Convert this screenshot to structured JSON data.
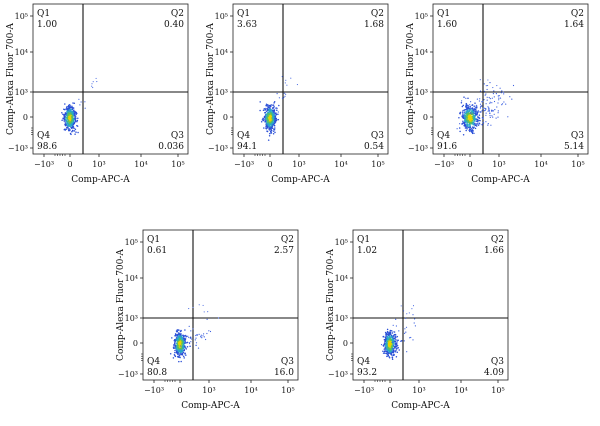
{
  "chart_data": [
    {
      "type": "scatter",
      "xlabel": "Comp-APC-A",
      "ylabel": "Comp-Alexa Fluor 700-A",
      "xticks": [
        "−10³",
        "0",
        "10³",
        "10⁴",
        "10⁵"
      ],
      "yticks": [
        "10⁵",
        "10⁴",
        "10³",
        "0",
        "−10³"
      ],
      "quadrants": [
        {
          "name": "Q1",
          "value": "1.00"
        },
        {
          "name": "Q2",
          "value": "0.40"
        },
        {
          "name": "Q3",
          "value": "0.036"
        },
        {
          "name": "Q4",
          "value": "98.6"
        }
      ]
    },
    {
      "type": "scatter",
      "xlabel": "Comp-APC-A",
      "ylabel": "Comp-Alexa Fluor 700-A",
      "xticks": [
        "−10³",
        "0",
        "10³",
        "10⁴",
        "10⁵"
      ],
      "yticks": [
        "10⁵",
        "10⁴",
        "10³",
        "0",
        "−10³"
      ],
      "quadrants": [
        {
          "name": "Q1",
          "value": "3.63"
        },
        {
          "name": "Q2",
          "value": "1.68"
        },
        {
          "name": "Q3",
          "value": "0.54"
        },
        {
          "name": "Q4",
          "value": "94.1"
        }
      ]
    },
    {
      "type": "scatter",
      "xlabel": "Comp-APC-A",
      "ylabel": "Comp-Alexa Fluor 700-A",
      "xticks": [
        "−10³",
        "0",
        "10³",
        "10⁴",
        "10⁵"
      ],
      "yticks": [
        "10⁵",
        "10⁴",
        "10³",
        "0",
        "−10³"
      ],
      "quadrants": [
        {
          "name": "Q1",
          "value": "1.60"
        },
        {
          "name": "Q2",
          "value": "1.64"
        },
        {
          "name": "Q3",
          "value": "5.14"
        },
        {
          "name": "Q4",
          "value": "91.6"
        }
      ]
    },
    {
      "type": "scatter",
      "xlabel": "Comp-APC-A",
      "ylabel": "Comp-Alexa Fluor 700-A",
      "xticks": [
        "−10³",
        "0",
        "10³",
        "10⁴",
        "10⁵"
      ],
      "yticks": [
        "10⁵",
        "10⁴",
        "10³",
        "0",
        "−10³"
      ],
      "quadrants": [
        {
          "name": "Q1",
          "value": "0.61"
        },
        {
          "name": "Q2",
          "value": "2.57"
        },
        {
          "name": "Q3",
          "value": "16.0"
        },
        {
          "name": "Q4",
          "value": "80.8"
        }
      ]
    },
    {
      "type": "scatter",
      "xlabel": "Comp-APC-A",
      "ylabel": "Comp-Alexa Fluor 700-A",
      "xticks": [
        "−10³",
        "0",
        "10³",
        "10⁴",
        "10⁵"
      ],
      "yticks": [
        "10⁵",
        "10⁴",
        "10³",
        "0",
        "−10³"
      ],
      "quadrants": [
        {
          "name": "Q1",
          "value": "1.02"
        },
        {
          "name": "Q2",
          "value": "1.66"
        },
        {
          "name": "Q3",
          "value": "4.09"
        },
        {
          "name": "Q4",
          "value": "93.2"
        }
      ]
    }
  ]
}
